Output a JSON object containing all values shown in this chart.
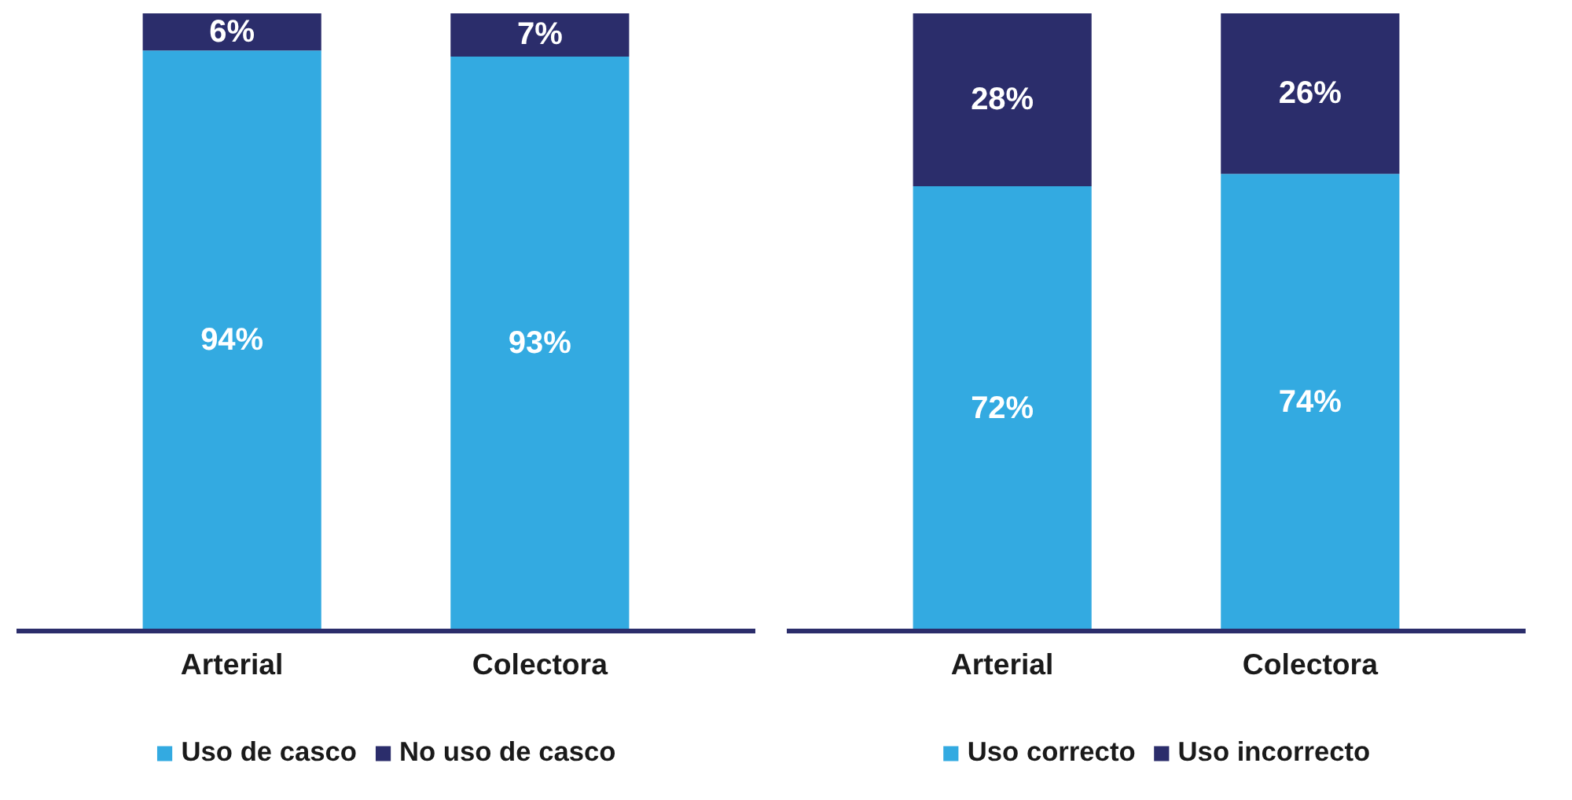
{
  "chart_data": [
    {
      "type": "bar",
      "stacked": true,
      "categories": [
        "Arterial",
        "Colectora"
      ],
      "series": [
        {
          "name": "Uso de casco",
          "color": "#33aae1",
          "values": [
            94,
            93
          ],
          "value_labels": [
            "94%",
            "93%"
          ]
        },
        {
          "name": "No uso de casco",
          "color": "#2b2d6b",
          "values": [
            6,
            7
          ],
          "value_labels": [
            "6%",
            "7%"
          ]
        }
      ],
      "data_labels": true,
      "legend": "bottom",
      "grid": false
    },
    {
      "type": "bar",
      "stacked": true,
      "categories": [
        "Arterial",
        "Colectora"
      ],
      "series": [
        {
          "name": "Uso correcto",
          "color": "#33aae1",
          "values": [
            72,
            74
          ],
          "value_labels": [
            "72%",
            "74%"
          ]
        },
        {
          "name": "Uso incorrecto",
          "color": "#2b2d6b",
          "values": [
            28,
            26
          ],
          "value_labels": [
            "28%",
            "26%"
          ]
        }
      ],
      "data_labels": true,
      "legend": "bottom",
      "grid": false
    }
  ]
}
